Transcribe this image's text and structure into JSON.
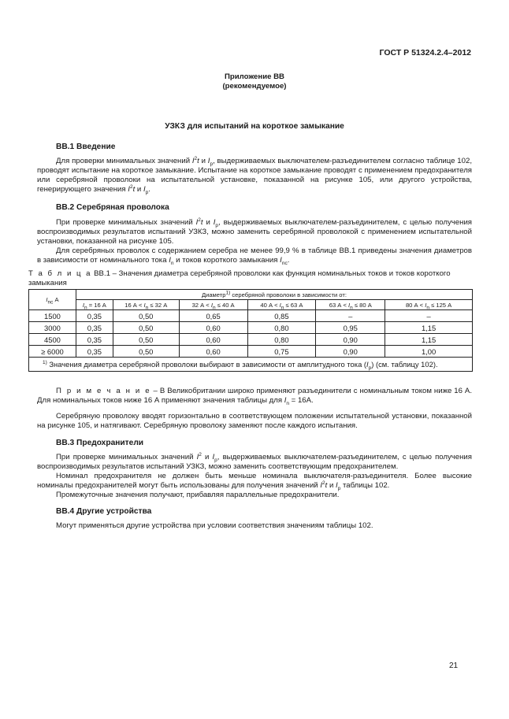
{
  "header": {
    "doc_id": "ГОСТ Р 51324.2.4–2012"
  },
  "annex": {
    "title": "Приложение ВВ",
    "status": "(рекомендуемое)"
  },
  "title": "УЗКЗ для испытаний на короткое замыкание",
  "sections": [
    {
      "heading": "ВВ.1 Введение",
      "paragraphs": [
        [
          "Для проверки минимальных значений ",
          {
            "i": "I"
          },
          {
            "sup": "2"
          },
          {
            "i": "t"
          },
          " и ",
          {
            "i": "I"
          },
          {
            "sub": "p"
          },
          ", выдерживаемых выключателем-разъединителем согласно таблице 102, проводят испытание на короткое замыкание. Испытание на короткое замыкание проводят с применением предохранителя или серебряной проволоки на испытательной установке, показанной на рисунке 105, или другого устройства, генерирующего значения ",
          {
            "i": "I"
          },
          {
            "sup": "2"
          },
          {
            "i": "t"
          },
          " и ",
          {
            "i": "I"
          },
          {
            "sub": "p"
          },
          "."
        ]
      ]
    },
    {
      "heading": "ВВ.2 Серебряная проволока",
      "paragraphs": [
        [
          "При проверке минимальных значений ",
          {
            "i": "I"
          },
          {
            "sup": "2"
          },
          {
            "i": "t"
          },
          " и ",
          {
            "i": "I"
          },
          {
            "sub": "p"
          },
          ", выдерживаемых выключателем-разъединителем, с целью получения воспроизводимых результатов испытаний УЗКЗ, можно заменить серебряной проволокой с применением испытательной установки, показанной на рисунке 105."
        ],
        [
          "Для серебряных проволок с содержанием серебра не менее 99,9 % в таблице ВВ.1 приведены значения диаметров в зависимости от номинального тока ",
          {
            "i": "I"
          },
          {
            "sub": "n"
          },
          " и токов короткого замыкания ",
          {
            "i": "I"
          },
          {
            "sub": "nc"
          },
          "."
        ]
      ]
    },
    {
      "heading": "ВВ.3 Предохранители",
      "paragraphs": [
        [
          "При проверке минимальных значений ",
          {
            "i": "I"
          },
          {
            "sup": "2"
          },
          " и ",
          {
            "i": "I"
          },
          {
            "sub": "p"
          },
          ", выдерживаемых выключателем-разъединителем, с целью получения воспроизводимых результатов испытаний УЗКЗ, можно заменить соответствующим предохранителем."
        ],
        [
          "Номинал предохранителя не должен быть меньше номинала выключателя-разъединителя. Более высокие номиналы предохранителей могут быть использованы для получения значений ",
          {
            "i": "I"
          },
          {
            "sup": "2"
          },
          {
            "i": "t"
          },
          " и ",
          {
            "i": "I"
          },
          {
            "sub": "p"
          },
          " таблицы 102."
        ],
        [
          "Промежуточные значения получают, прибавляя параллельные предохранители."
        ]
      ]
    },
    {
      "heading": "ВВ.4 Другие устройства",
      "paragraphs": [
        [
          "Могут применяться другие устройства при условии соответствия значениям таблицы 102."
        ]
      ]
    }
  ],
  "table": {
    "caption_label": "Т а б л и ц а",
    "caption": " ВВ.1 – Значения диаметра серебряной проволоки как функция номинальных токов и токов короткого замыкания",
    "row_header": [
      {
        "i": "I"
      },
      {
        "sub": "nc"
      },
      " А"
    ],
    "group_header": [
      "Диаметр",
      {
        "sup": "1)"
      },
      " серебряной проволоки в зависимости от:"
    ],
    "columns": [
      [
        {
          "i": "I"
        },
        {
          "sub": "n"
        },
        " = 16 А"
      ],
      [
        "16 А < ",
        {
          "i": "I"
        },
        {
          "sub": "n"
        },
        " ≤ 32 А"
      ],
      [
        "32 А < ",
        {
          "i": "I"
        },
        {
          "sub": "n"
        },
        " ≤ 40 А"
      ],
      [
        "40 А < ",
        {
          "i": "I"
        },
        {
          "sub": "n"
        },
        " ≤ 63 А"
      ],
      [
        "63 А < ",
        {
          "i": "I"
        },
        {
          "sub": "n"
        },
        " ≤ 80 А"
      ],
      [
        "80 А < ",
        {
          "i": "I"
        },
        {
          "sub": "n"
        },
        " ≤ 125 А"
      ]
    ],
    "rows": [
      [
        "1500",
        "0,35",
        "0,50",
        "0,65",
        "0,85",
        "–",
        "–"
      ],
      [
        "3000",
        "0,35",
        "0,50",
        "0,60",
        "0,80",
        "0,95",
        "1,15"
      ],
      [
        "4500",
        "0,35",
        "0,50",
        "0,60",
        "0,80",
        "0,90",
        "1,15"
      ],
      [
        "≥ 6000",
        "0,35",
        "0,50",
        "0,60",
        "0,75",
        "0,90",
        "1,00"
      ]
    ],
    "footnote": [
      {
        "sup": "1)"
      },
      " Значения диаметра серебряной проволоки выбирают в зависимости от амплитудного тока (",
      {
        "i": "I"
      },
      {
        "sub": "p"
      },
      ") (см. таблицу 102)."
    ]
  },
  "note": {
    "label": "П р и м е ч а н и е",
    "text": [
      " – В Великобритании широко применяют разъединители с номинальным током ниже 16 А. Для номинальных токов ниже 16 А применяют значения таблицы для ",
      {
        "i": "I"
      },
      {
        "sub": "n"
      },
      " = 16А."
    ]
  },
  "wire_paragraph": [
    "Серебряную проволоку вводят горизонтально в соответствующем положении испытательной установки, показанной на рисунке 105, и натягивают. Серебряную проволоку заменяют после каждого испытания."
  ],
  "page_number": "21"
}
